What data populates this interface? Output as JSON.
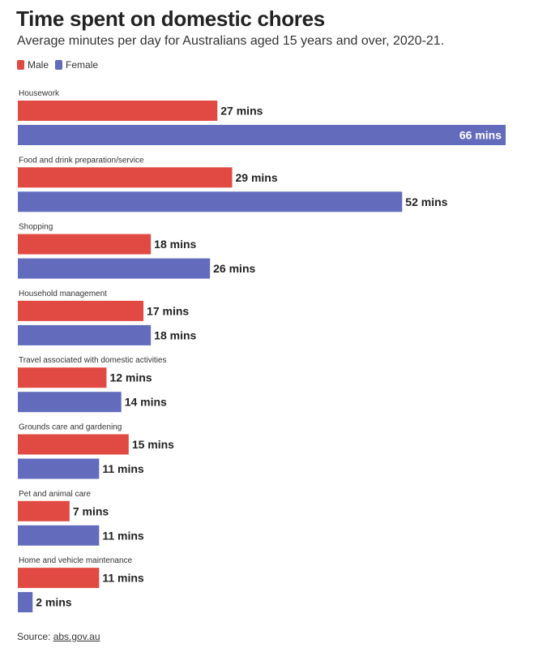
{
  "title": "Time spent on domestic chores",
  "subtitle": "Average minutes per day for Australians aged 15 years and over, 2020-21.",
  "source": {
    "label": "Source:",
    "link": "abs.gov.au"
  },
  "colors": {
    "male": "#e04a43",
    "female": "#636bbd"
  },
  "chart_data": {
    "type": "bar",
    "orientation": "horizontal",
    "categories": [
      "Housework",
      "Food and drink preparation/service",
      "Shopping",
      "Household management",
      "Travel associated with domestic activities",
      "Grounds care and gardening",
      "Pet and animal care",
      "Home and vehicle maintenance"
    ],
    "series": [
      {
        "name": "Male",
        "values": [
          27,
          29,
          18,
          17,
          12,
          15,
          7,
          11
        ]
      },
      {
        "name": "Female",
        "values": [
          66,
          52,
          26,
          18,
          14,
          11,
          11,
          2
        ]
      }
    ],
    "value_suffix": " mins",
    "xlim": [
      0,
      66
    ],
    "legend": "top-left",
    "grid": false
  }
}
